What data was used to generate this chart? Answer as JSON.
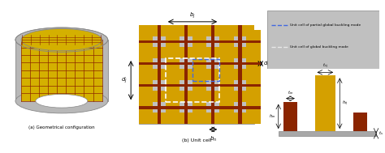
{
  "title_a": "(a) Geometrical configuration",
  "title_b": "(b) Unit cell",
  "cylinder_outer_color": "#b8b8b8",
  "cylinder_inner_color": "#d4b000",
  "grid_color_red": "#8B2500",
  "grid_color_gold": "#d4a000",
  "panel_bg": "#c0c0c0",
  "bar_gold": "#d4a000",
  "bar_red": "#8B2500",
  "base_color": "#a8a8a8",
  "legend_blue_color": "#4169E1",
  "legend_white_color": "#e8e8e8",
  "legend_blue_text": "Unit cell of partial global buckling mode",
  "legend_white_text": "Unit cell of global buckling mode"
}
